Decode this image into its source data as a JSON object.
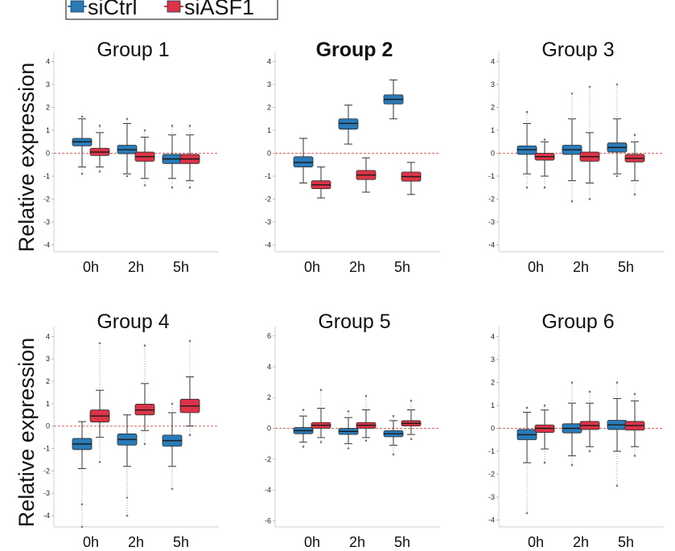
{
  "chart_data": {
    "type": "box",
    "legend": {
      "placement": "top-left",
      "entries": [
        {
          "label": "siCtrl",
          "color": "#2b7ab8"
        },
        {
          "label": "siASF1",
          "color": "#d93447"
        }
      ]
    },
    "ylabel": "Relative expression",
    "categories": [
      "0h",
      "2h",
      "5h"
    ],
    "zero_line": {
      "y": 0,
      "style": "dashed",
      "color": "#cc6666"
    },
    "panels": [
      {
        "title": "Group 1",
        "bold": false,
        "ylim": [
          -4.3,
          4.3
        ],
        "yticks": [
          -4,
          -3,
          -2,
          -1,
          0,
          1,
          2,
          3,
          4
        ],
        "series": [
          {
            "name": "siCtrl",
            "boxes": [
              {
                "min": -0.6,
                "q1": 0.32,
                "median": 0.5,
                "q3": 0.65,
                "max": 1.5,
                "outliers": [
                  -0.9,
                  1.6
                ]
              },
              {
                "min": -0.9,
                "q1": -0.02,
                "median": 0.15,
                "q3": 0.35,
                "max": 1.3,
                "outliers": [
                  -1.0,
                  1.5
                ]
              },
              {
                "min": -1.1,
                "q1": -0.45,
                "median": -0.25,
                "q3": -0.05,
                "max": 0.8,
                "outliers": [
                  -1.5,
                  1.2
                ]
              }
            ]
          },
          {
            "name": "siASF1",
            "boxes": [
              {
                "min": -0.6,
                "q1": -0.1,
                "median": 0.05,
                "q3": 0.22,
                "max": 0.9,
                "outliers": [
                  -0.8,
                  1.2
                ]
              },
              {
                "min": -1.1,
                "q1": -0.35,
                "median": -0.15,
                "q3": 0.05,
                "max": 0.7,
                "outliers": [
                  -1.4,
                  1.0
                ]
              },
              {
                "min": -1.2,
                "q1": -0.45,
                "median": -0.25,
                "q3": -0.05,
                "max": 0.8,
                "outliers": [
                  -1.5,
                  1.2
                ]
              }
            ]
          }
        ]
      },
      {
        "title": "Group 2",
        "bold": true,
        "ylim": [
          -4.3,
          4.3
        ],
        "yticks": [
          -4,
          -3,
          -2,
          -1,
          0,
          1,
          2,
          3,
          4
        ],
        "series": [
          {
            "name": "siCtrl",
            "boxes": [
              {
                "min": -1.3,
                "q1": -0.6,
                "median": -0.4,
                "q3": -0.15,
                "max": 0.65,
                "outliers": []
              },
              {
                "min": 0.4,
                "q1": 1.05,
                "median": 1.3,
                "q3": 1.5,
                "max": 2.1,
                "outliers": []
              },
              {
                "min": 1.5,
                "q1": 2.15,
                "median": 2.35,
                "q3": 2.55,
                "max": 3.2,
                "outliers": []
              }
            ]
          },
          {
            "name": "siASF1",
            "boxes": [
              {
                "min": -1.95,
                "q1": -1.55,
                "median": -1.38,
                "q3": -1.2,
                "max": -0.6,
                "outliers": []
              },
              {
                "min": -1.7,
                "q1": -1.15,
                "median": -0.95,
                "q3": -0.75,
                "max": -0.2,
                "outliers": []
              },
              {
                "min": -1.8,
                "q1": -1.22,
                "median": -1.02,
                "q3": -0.82,
                "max": -0.4,
                "outliers": []
              }
            ]
          }
        ]
      },
      {
        "title": "Group 3",
        "bold": false,
        "ylim": [
          -4.3,
          4.3
        ],
        "yticks": [
          -4,
          -3,
          -2,
          -1,
          0,
          1,
          2,
          3,
          4
        ],
        "series": [
          {
            "name": "siCtrl",
            "boxes": [
              {
                "min": -0.9,
                "q1": -0.05,
                "median": 0.15,
                "q3": 0.32,
                "max": 1.3,
                "outliers": [
                  -1.5,
                  1.8
                ]
              },
              {
                "min": -1.2,
                "q1": -0.05,
                "median": 0.15,
                "q3": 0.35,
                "max": 1.5,
                "outliers": [
                  -2.1,
                  2.6
                ]
              },
              {
                "min": -0.9,
                "q1": 0.05,
                "median": 0.25,
                "q3": 0.45,
                "max": 1.5,
                "outliers": [
                  -1.0,
                  3.0
                ]
              }
            ]
          },
          {
            "name": "siASF1",
            "boxes": [
              {
                "min": -1.0,
                "q1": -0.3,
                "median": -0.15,
                "q3": 0.0,
                "max": 0.5,
                "outliers": [
                  -1.5,
                  0.6
                ]
              },
              {
                "min": -1.3,
                "q1": -0.35,
                "median": -0.15,
                "q3": 0.05,
                "max": 0.9,
                "outliers": [
                  -2.0,
                  2.9
                ]
              },
              {
                "min": -1.2,
                "q1": -0.38,
                "median": -0.22,
                "q3": -0.05,
                "max": 0.5,
                "outliers": [
                  -1.8,
                  0.8
                ]
              }
            ]
          }
        ]
      },
      {
        "title": "Group 4",
        "bold": false,
        "ylim": [
          -4.5,
          4.3
        ],
        "yticks": [
          -4,
          -3,
          -2,
          -1,
          0,
          1,
          2,
          3,
          4
        ],
        "series": [
          {
            "name": "siCtrl",
            "boxes": [
              {
                "min": -1.9,
                "q1": -1.05,
                "median": -0.8,
                "q3": -0.55,
                "max": 0.2,
                "outliers": [
                  -3.5,
                  -4.5
                ]
              },
              {
                "min": -1.8,
                "q1": -0.85,
                "median": -0.6,
                "q3": -0.35,
                "max": 0.5,
                "outliers": [
                  -3.2,
                  -4.0
                ]
              },
              {
                "min": -1.8,
                "q1": -0.9,
                "median": -0.65,
                "q3": -0.4,
                "max": 0.6,
                "outliers": [
                  -2.8,
                  1.0
                ]
              }
            ]
          },
          {
            "name": "siASF1",
            "boxes": [
              {
                "min": -0.5,
                "q1": 0.18,
                "median": 0.45,
                "q3": 0.72,
                "max": 1.6,
                "outliers": [
                  -1.6,
                  3.7
                ]
              },
              {
                "min": -0.2,
                "q1": 0.5,
                "median": 0.72,
                "q3": 0.98,
                "max": 1.9,
                "outliers": [
                  -0.8,
                  3.6
                ]
              },
              {
                "min": 0.0,
                "q1": 0.6,
                "median": 0.9,
                "q3": 1.2,
                "max": 2.2,
                "outliers": [
                  -0.4,
                  3.8
                ]
              }
            ]
          }
        ]
      },
      {
        "title": "Group 5",
        "bold": false,
        "ylim": [
          -6.4,
          6.4
        ],
        "yticks": [
          -6,
          -4,
          -2,
          0,
          2,
          4,
          6
        ],
        "series": [
          {
            "name": "siCtrl",
            "boxes": [
              {
                "min": -0.9,
                "q1": -0.35,
                "median": -0.15,
                "q3": 0.05,
                "max": 0.8,
                "outliers": [
                  -1.2,
                  1.2
                ]
              },
              {
                "min": -1.0,
                "q1": -0.4,
                "median": -0.2,
                "q3": 0.0,
                "max": 0.7,
                "outliers": [
                  -1.3,
                  1.1
                ]
              },
              {
                "min": -1.1,
                "q1": -0.55,
                "median": -0.35,
                "q3": -0.15,
                "max": 0.5,
                "outliers": [
                  -1.7,
                  0.8
                ]
              }
            ]
          },
          {
            "name": "siASF1",
            "boxes": [
              {
                "min": -0.6,
                "q1": 0.0,
                "median": 0.2,
                "q3": 0.38,
                "max": 1.3,
                "outliers": [
                  -0.9,
                  2.5
                ]
              },
              {
                "min": -0.6,
                "q1": 0.0,
                "median": 0.2,
                "q3": 0.38,
                "max": 1.2,
                "outliers": [
                  -0.8,
                  2.1
                ]
              },
              {
                "min": -0.4,
                "q1": 0.15,
                "median": 0.32,
                "q3": 0.5,
                "max": 1.2,
                "outliers": [
                  -0.7,
                  1.8
                ]
              }
            ]
          }
        ]
      },
      {
        "title": "Group 6",
        "bold": false,
        "ylim": [
          -4.3,
          4.3
        ],
        "yticks": [
          -4,
          -3,
          -2,
          -1,
          0,
          1,
          2,
          3,
          4
        ],
        "series": [
          {
            "name": "siCtrl",
            "boxes": [
              {
                "min": -1.5,
                "q1": -0.5,
                "median": -0.28,
                "q3": -0.05,
                "max": 0.7,
                "outliers": [
                  -3.7,
                  0.9
                ]
              },
              {
                "min": -1.2,
                "q1": -0.2,
                "median": 0.0,
                "q3": 0.2,
                "max": 1.1,
                "outliers": [
                  -1.6,
                  2.0
                ]
              },
              {
                "min": -1.0,
                "q1": -0.05,
                "median": 0.15,
                "q3": 0.35,
                "max": 1.3,
                "outliers": [
                  -2.5,
                  2.0
                ]
              }
            ]
          },
          {
            "name": "siASF1",
            "boxes": [
              {
                "min": -0.9,
                "q1": -0.18,
                "median": 0.0,
                "q3": 0.15,
                "max": 0.8,
                "outliers": [
                  -1.5,
                  1.0
                ]
              },
              {
                "min": -0.8,
                "q1": -0.05,
                "median": 0.12,
                "q3": 0.3,
                "max": 1.1,
                "outliers": [
                  -1.0,
                  1.6
                ]
              },
              {
                "min": -0.8,
                "q1": -0.08,
                "median": 0.12,
                "q3": 0.3,
                "max": 1.2,
                "outliers": [
                  -1.2,
                  1.5
                ]
              }
            ]
          }
        ]
      }
    ]
  }
}
